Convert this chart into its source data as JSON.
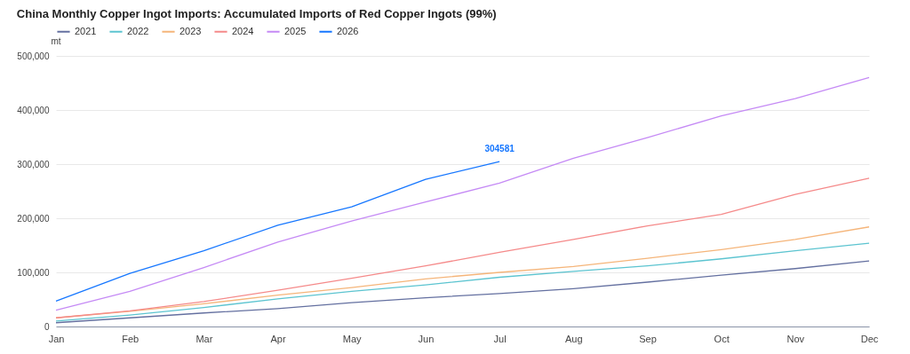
{
  "chart_data": {
    "type": "line",
    "title": "China Monthly Copper Ingot Imports: Accumulated Imports of Red Copper Ingots (99%)",
    "ylabel": "mt",
    "categories": [
      "Jan",
      "Feb",
      "Mar",
      "Apr",
      "May",
      "Jun",
      "Jul",
      "Aug",
      "Sep",
      "Oct",
      "Nov",
      "Dec"
    ],
    "series": [
      {
        "name": "2021",
        "color": "#6470a0",
        "values": [
          7000,
          16000,
          25000,
          33000,
          44000,
          53000,
          61000,
          70000,
          82000,
          95000,
          107000,
          121000
        ]
      },
      {
        "name": "2022",
        "color": "#5cc4d0",
        "values": [
          10000,
          21000,
          35000,
          51000,
          65000,
          77000,
          91000,
          102000,
          112000,
          125000,
          140000,
          154000
        ]
      },
      {
        "name": "2023",
        "color": "#f5b57a",
        "values": [
          16000,
          28000,
          42000,
          58000,
          72000,
          88000,
          100000,
          111000,
          126000,
          142000,
          161000,
          184000
        ]
      },
      {
        "name": "2024",
        "color": "#f58a8a",
        "values": [
          16000,
          29000,
          46000,
          67000,
          89000,
          112000,
          137000,
          161000,
          186000,
          207000,
          244000,
          274000
        ]
      },
      {
        "name": "2025",
        "color": "#c58af5",
        "values": [
          30000,
          65000,
          109000,
          156000,
          195000,
          230000,
          265000,
          311000,
          349000,
          389000,
          421000,
          460000
        ]
      },
      {
        "name": "2026",
        "color": "#1677ff",
        "values": [
          47000,
          98000,
          140000,
          187000,
          221000,
          272000,
          304581,
          null,
          null,
          null,
          null,
          null
        ],
        "value_labels": [
          null,
          null,
          null,
          null,
          null,
          null,
          "304581",
          null,
          null,
          null,
          null,
          null
        ]
      }
    ],
    "ylim": [
      0,
      500000
    ],
    "yticks": [
      0,
      {
        "value": 100000,
        "label": "100,000"
      },
      {
        "value": 200000,
        "label": "200,000"
      },
      {
        "value": 300000,
        "label": "300,000"
      },
      {
        "value": 400000,
        "label": "400,000"
      },
      {
        "value": 500000,
        "label": "500,000"
      }
    ],
    "grid": "y",
    "legend": "top left",
    "marker": "none",
    "line_style": "solid"
  }
}
